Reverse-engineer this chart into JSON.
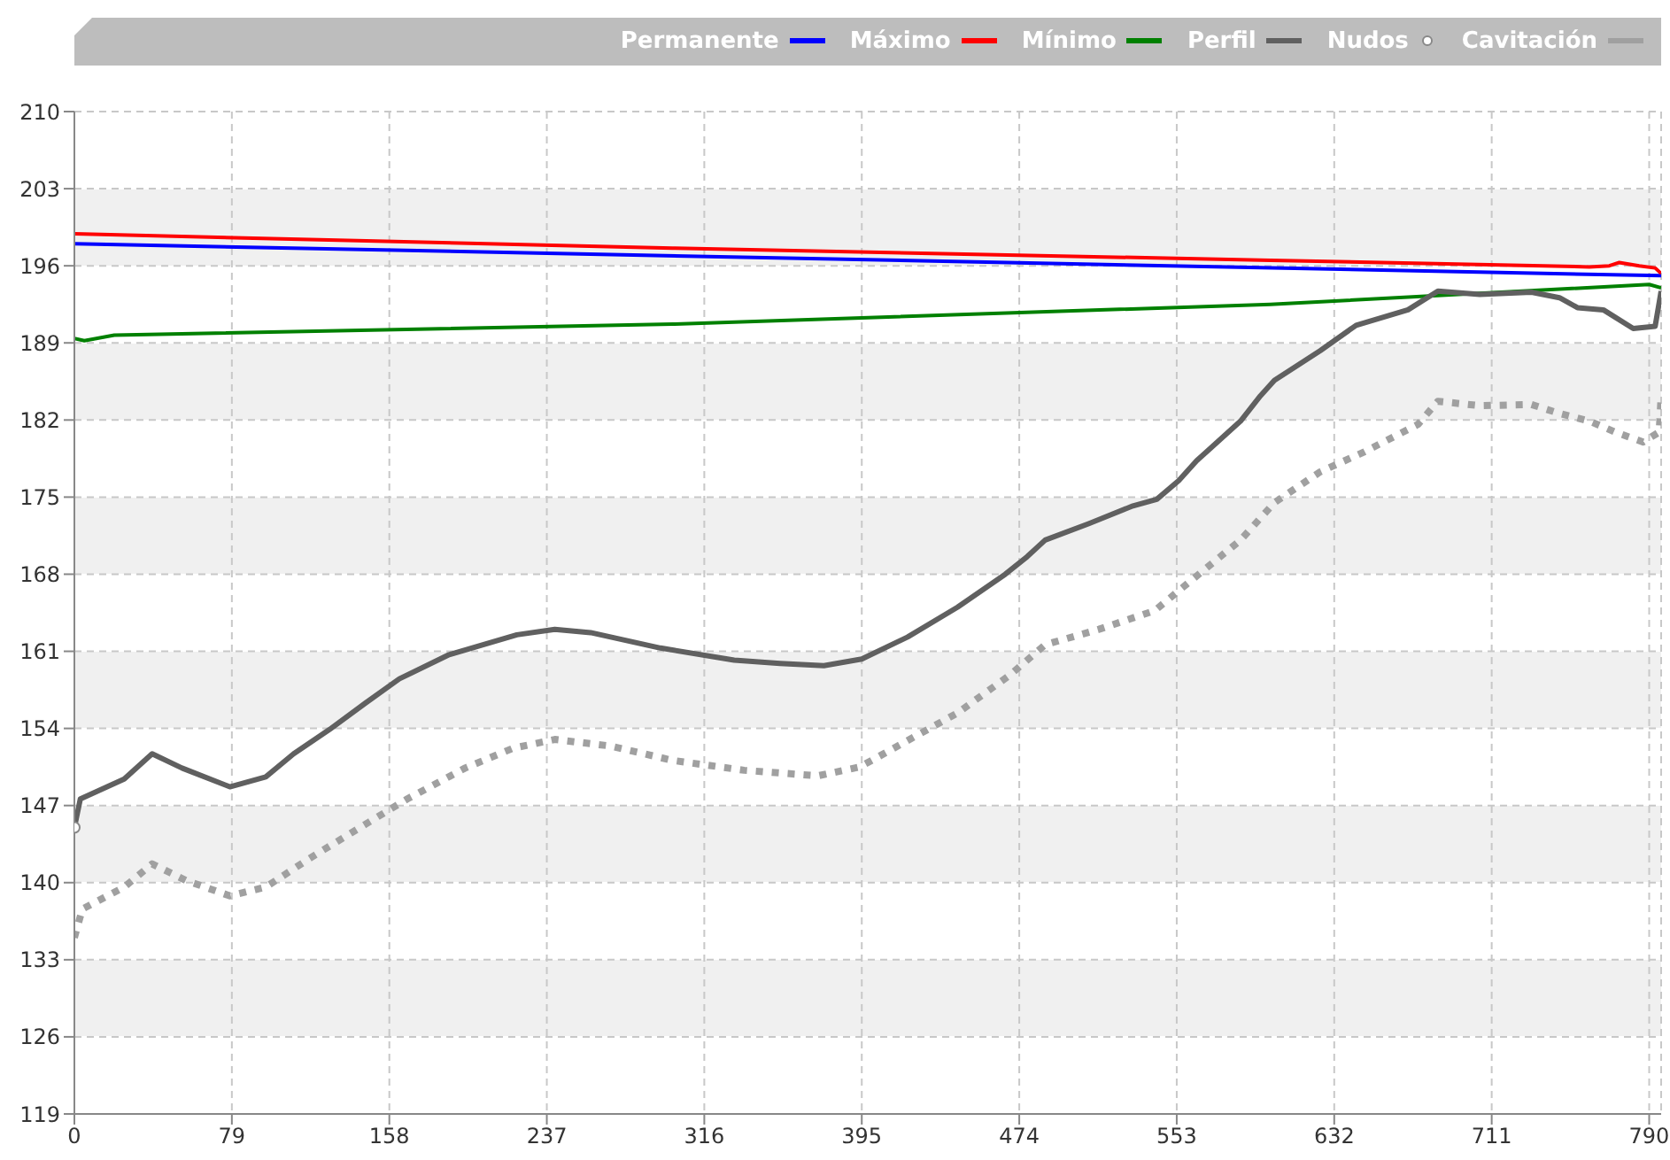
{
  "chart_data": {
    "type": "line",
    "xlim": [
      0,
      796
    ],
    "xticks": [
      0,
      79,
      158,
      237,
      316,
      395,
      474,
      553,
      632,
      711,
      790
    ],
    "ylim": [
      119,
      210
    ],
    "yticks": [
      119,
      126,
      133,
      140,
      147,
      154,
      161,
      168,
      175,
      182,
      189,
      196,
      203,
      210
    ],
    "grid": true,
    "legend": "top right",
    "marker": "none",
    "series": [
      {
        "name": "Permanente",
        "color": "#0000ff",
        "x": [
          0,
          796
        ],
        "values": [
          198.0,
          195.1
        ]
      },
      {
        "name": "Máximo",
        "color": "#ff0000",
        "x": [
          0,
          300,
          600,
          760,
          770,
          775,
          785,
          793,
          796
        ],
        "values": [
          198.9,
          197.6,
          196.5,
          195.9,
          196.0,
          196.3,
          196.0,
          195.8,
          195.3
        ]
      },
      {
        "name": "Mínimo",
        "color": "#008000",
        "x": [
          0,
          5,
          20,
          300,
          600,
          790,
          796
        ],
        "values": [
          189.4,
          189.2,
          189.7,
          190.7,
          192.5,
          194.3,
          194.0
        ]
      },
      {
        "name": "Perfil",
        "color": "#606060",
        "x": [
          0,
          3,
          25,
          39,
          54,
          78,
          96,
          110,
          128,
          146,
          163,
          188,
          222,
          241,
          259,
          294,
          331,
          354,
          376,
          395,
          418,
          443,
          467,
          478,
          487,
          509,
          531,
          543,
          554,
          563,
          585,
          595,
          602,
          625,
          643,
          669,
          684,
          705,
          731,
          745,
          754,
          767,
          782,
          793,
          796
        ],
        "values": [
          145.0,
          147.6,
          149.4,
          151.7,
          150.4,
          148.7,
          149.6,
          151.7,
          153.9,
          156.3,
          158.5,
          160.7,
          162.5,
          163.0,
          162.7,
          161.3,
          160.2,
          159.9,
          159.7,
          160.3,
          162.3,
          165.0,
          168.0,
          169.6,
          171.1,
          172.6,
          174.2,
          174.8,
          176.5,
          178.3,
          181.9,
          184.2,
          185.6,
          188.3,
          190.6,
          192.0,
          193.7,
          193.4,
          193.6,
          193.1,
          192.2,
          192.0,
          190.3,
          190.5,
          193.7
        ]
      },
      {
        "name": "Nudos",
        "type": "scatter",
        "marker": "circle",
        "color": "#ffffff",
        "x": [
          0
        ],
        "values": [
          145.0
        ]
      },
      {
        "name": "Cavitación",
        "color": "#a0a0a0",
        "line_style": "dotted",
        "x": [
          0,
          4,
          25,
          39,
          56,
          78,
          96,
          118,
          146,
          167,
          196,
          220,
          241,
          269,
          300,
          336,
          373,
          394,
          416,
          443,
          469,
          487,
          514,
          542,
          554,
          585,
          602,
          625,
          647,
          674,
          684,
          705,
          731,
          745,
          760,
          773,
          787,
          795,
          796
        ],
        "values": [
          135.0,
          137.6,
          139.6,
          141.7,
          140.2,
          138.8,
          139.6,
          142.2,
          145.3,
          147.6,
          150.4,
          152.2,
          153.0,
          152.4,
          151.1,
          150.2,
          149.7,
          150.5,
          152.7,
          155.4,
          158.8,
          161.6,
          163.0,
          164.7,
          166.5,
          171.1,
          174.5,
          177.3,
          179.1,
          181.6,
          183.7,
          183.3,
          183.4,
          182.6,
          181.9,
          180.9,
          180.0,
          180.9,
          184.2
        ]
      }
    ]
  }
}
